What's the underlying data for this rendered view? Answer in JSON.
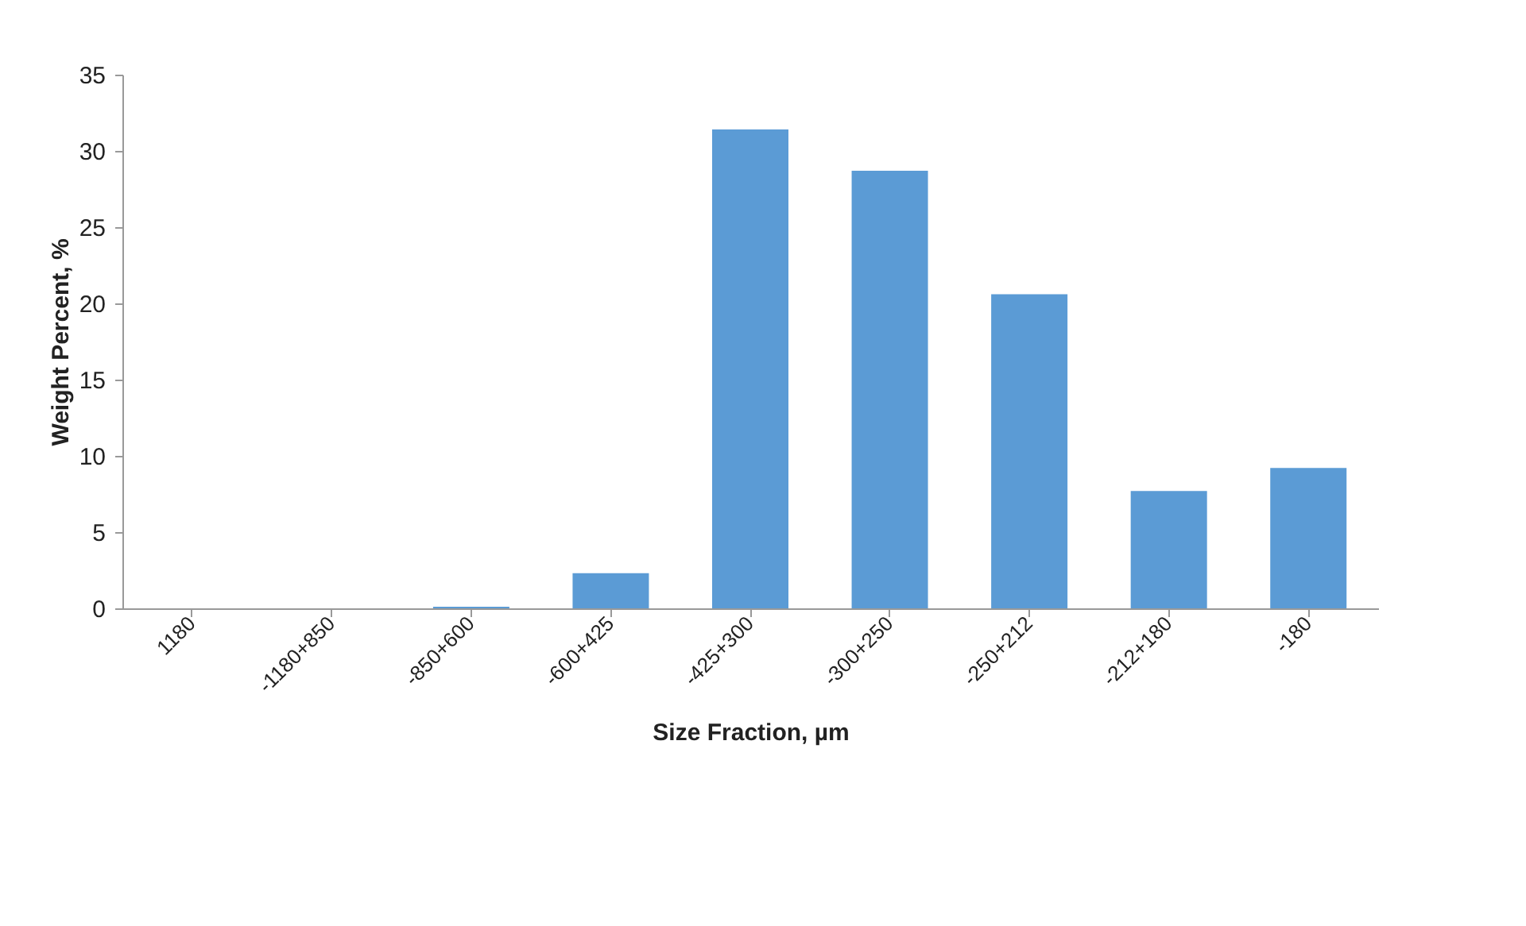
{
  "chart_data": {
    "type": "bar",
    "xlabel": "Size Fraction, µm",
    "ylabel": "Weight Percent, %",
    "categories": [
      "1180",
      "-1180+850",
      "-850+600",
      "-600+425",
      "-425+300",
      "-300+250",
      "-250+212",
      "-212+180",
      "-180"
    ],
    "values": [
      0,
      0,
      0.1,
      2.3,
      31.4,
      28.7,
      20.6,
      7.7,
      9.2
    ],
    "color": "#5b9bd5",
    "ylim": [
      0,
      35
    ],
    "yticks": [
      0,
      5,
      10,
      15,
      20,
      25,
      30,
      35
    ],
    "grid": false
  }
}
